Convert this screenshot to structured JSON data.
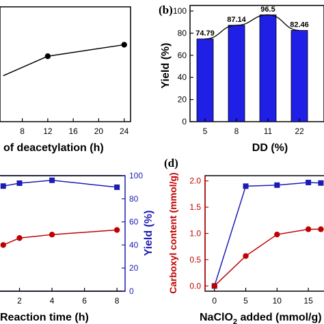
{
  "chart_data": [
    {
      "panel": "",
      "type": "line",
      "xlabel": "of deacetylation (h)",
      "ylabel": "",
      "x_ticks": [
        "8",
        "12",
        "16",
        "20",
        "24"
      ],
      "xlim": [
        4.5,
        25
      ],
      "ylim": [
        0,
        100
      ],
      "series": [
        {
          "x": [
            5,
            12,
            24
          ],
          "values": [
            40,
            57,
            67
          ],
          "color": "#000000"
        }
      ]
    },
    {
      "panel": "(b)",
      "type": "bar",
      "xlabel": "DD (%)",
      "ylabel": "Yield (%)",
      "categories": [
        "5",
        "8",
        "11",
        "22"
      ],
      "values": [
        74.79,
        87.14,
        96.5,
        82.46
      ],
      "data_labels": [
        "74.79",
        "87.14",
        "96.5",
        "82.46"
      ],
      "y_ticks": [
        "0",
        "20",
        "40",
        "60",
        "80",
        "100"
      ],
      "ylim": [
        0,
        105
      ],
      "bar_color": "#1f1fe6",
      "trend_color": "#000000"
    },
    {
      "panel": "",
      "type": "line",
      "xlabel": "Reaction time (h)",
      "ylabel_right": "Yield (%)",
      "x_ticks": [
        "2",
        "4",
        "6",
        "8"
      ],
      "y_right_ticks": [
        "0",
        "20",
        "40",
        "60",
        "80",
        "100"
      ],
      "xlim": [
        0.8,
        8.5
      ],
      "ylim": [
        0,
        100
      ],
      "series": [
        {
          "name": "",
          "x": [
            1,
            2,
            4,
            8
          ],
          "values": [
            91,
            93.5,
            96,
            90
          ],
          "color": "#1c1cb4",
          "marker": "square"
        },
        {
          "name": "",
          "x": [
            1,
            2,
            4,
            8
          ],
          "values": [
            40,
            46,
            49,
            53
          ],
          "color": "#c00000",
          "marker": "circle"
        }
      ]
    },
    {
      "panel": "(d)",
      "type": "line",
      "xlabel": "NaClO",
      "xlabel_sub": "2",
      "xlabel_tail": " added (mmol/g)",
      "ylabel": "Carboxyl content (mmol/g)",
      "x_ticks": [
        "0",
        "5",
        "10",
        "15"
      ],
      "y_ticks": [
        "0.0",
        "0.5",
        "1.0",
        "1.5",
        "2.0"
      ],
      "xlim": [
        -1.5,
        17.5
      ],
      "ylim": [
        -0.1,
        2.1
      ],
      "series": [
        {
          "name": "",
          "x": [
            0,
            5,
            10,
            15,
            17
          ],
          "values": [
            0.0,
            1.9,
            1.92,
            1.97,
            1.96
          ],
          "color": "#1c1cb4",
          "marker": "square"
        },
        {
          "name": "",
          "x": [
            0,
            5,
            10,
            15,
            17
          ],
          "values": [
            0.0,
            0.57,
            0.98,
            1.08,
            1.08
          ],
          "color": "#c00000",
          "marker": "circle"
        }
      ]
    }
  ]
}
